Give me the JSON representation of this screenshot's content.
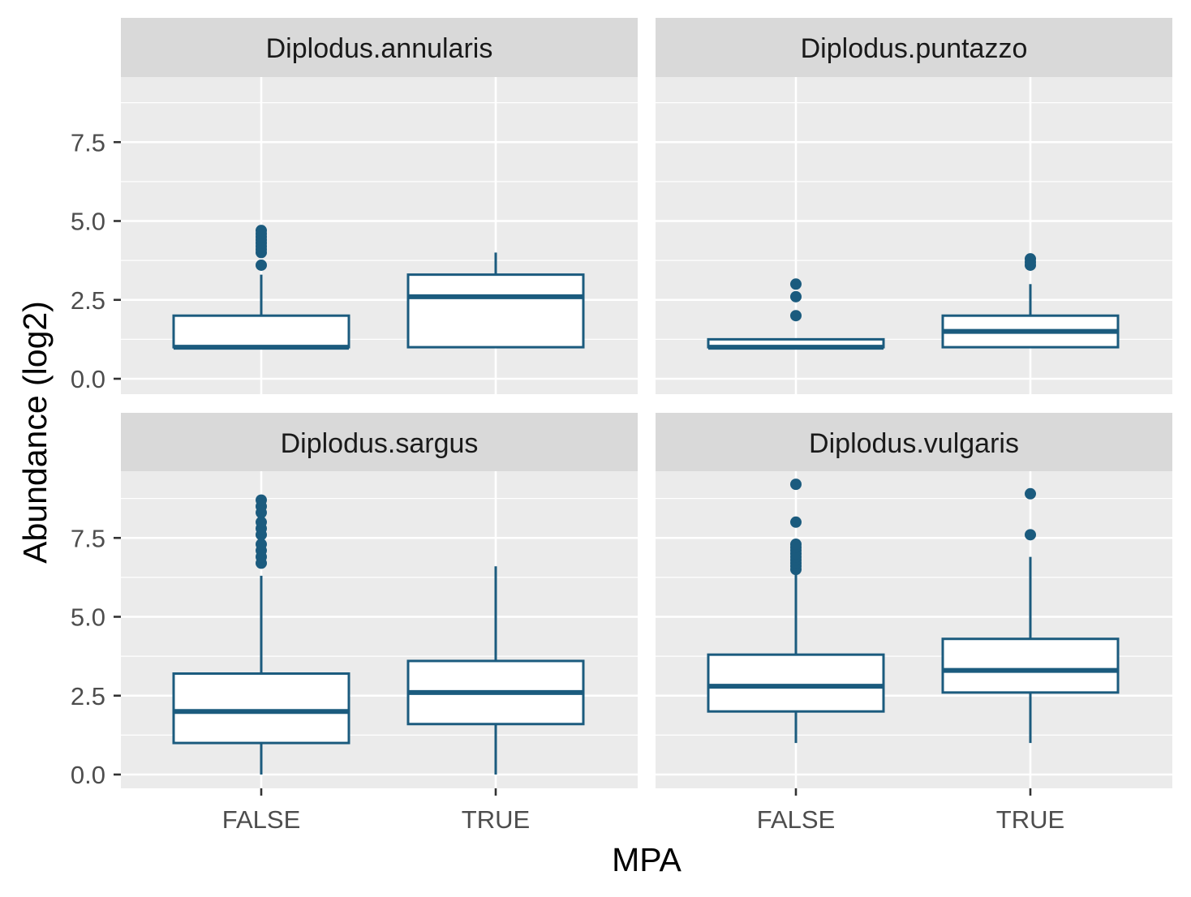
{
  "chart_data": {
    "type": "box",
    "title": "",
    "xlabel": "MPA",
    "ylabel": "Abundance (log2)",
    "categories": [
      "FALSE",
      "TRUE"
    ],
    "yticks": [
      0.0,
      2.5,
      5.0,
      7.5
    ],
    "ytick_labels": [
      "0.0",
      "2.5",
      "5.0",
      "7.5"
    ],
    "ylim": [
      -0.45,
      9.7
    ],
    "grid": true,
    "colors": {
      "box_stroke": "#1b5b7e",
      "panel_bg": "#ebebeb",
      "strip_bg": "#d9d9d9",
      "grid": "#ffffff",
      "tick_label": "#4d4d4d"
    },
    "panels": [
      {
        "name": "Diplodus.annularis",
        "boxes": [
          {
            "category": "FALSE",
            "whisker_low": 1.0,
            "q1": 1.0,
            "median": 1.0,
            "q3": 2.0,
            "whisker_high": 3.3,
            "outliers": [
              3.6,
              4.0,
              4.1,
              4.2,
              4.3,
              4.4,
              4.5,
              4.6,
              4.7
            ]
          },
          {
            "category": "TRUE",
            "whisker_low": 1.0,
            "q1": 1.0,
            "median": 2.6,
            "q3": 3.3,
            "whisker_high": 4.0,
            "outliers": []
          }
        ]
      },
      {
        "name": "Diplodus.puntazzo",
        "boxes": [
          {
            "category": "FALSE",
            "whisker_low": 1.0,
            "q1": 1.0,
            "median": 1.0,
            "q3": 1.25,
            "whisker_high": 1.25,
            "outliers": [
              2.0,
              2.6,
              3.0
            ]
          },
          {
            "category": "TRUE",
            "whisker_low": 1.0,
            "q1": 1.0,
            "median": 1.5,
            "q3": 2.0,
            "whisker_high": 3.0,
            "outliers": [
              3.6,
              3.7,
              3.8
            ]
          }
        ]
      },
      {
        "name": "Diplodus.sargus",
        "boxes": [
          {
            "category": "FALSE",
            "whisker_low": 0.0,
            "q1": 1.0,
            "median": 2.0,
            "q3": 3.2,
            "whisker_high": 6.3,
            "outliers": [
              6.7,
              6.9,
              7.1,
              7.3,
              7.6,
              7.8,
              8.0,
              8.3,
              8.5,
              8.7
            ]
          },
          {
            "category": "TRUE",
            "whisker_low": 0.0,
            "q1": 1.6,
            "median": 2.6,
            "q3": 3.6,
            "whisker_high": 6.6,
            "outliers": []
          }
        ]
      },
      {
        "name": "Diplodus.vulgaris",
        "boxes": [
          {
            "category": "FALSE",
            "whisker_low": 1.0,
            "q1": 2.0,
            "median": 2.8,
            "q3": 3.8,
            "whisker_high": 6.4,
            "outliers": [
              6.5,
              6.6,
              6.7,
              6.8,
              6.9,
              7.0,
              7.1,
              7.2,
              7.3,
              8.0,
              9.2
            ]
          },
          {
            "category": "TRUE",
            "whisker_low": 1.0,
            "q1": 2.6,
            "median": 3.3,
            "q3": 4.3,
            "whisker_high": 6.9,
            "outliers": [
              7.6,
              8.9
            ]
          }
        ]
      }
    ]
  }
}
